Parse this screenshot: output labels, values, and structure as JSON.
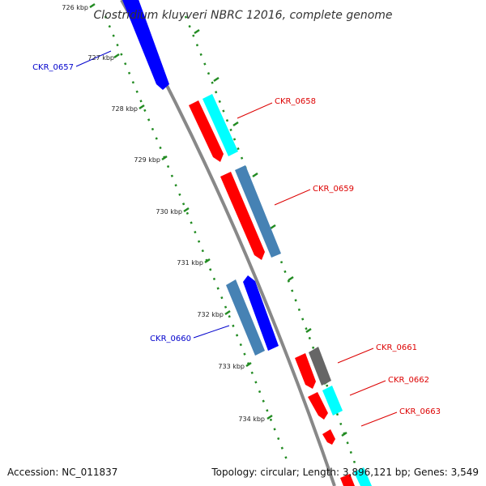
{
  "title": "Clostridium kluyveri NBRC 12016, complete genome",
  "accession": "Accession: NC_011837",
  "topology": "Topology: circular; Length: 3,896,121 bp; Genes: 3,549",
  "colors": {
    "forward_label": "#dd0000",
    "reverse_label": "#0000cc",
    "red": "#ff0000",
    "cyan": "#00ffff",
    "blue": "#0000ff",
    "steel": "#4682b4",
    "gray": "#666666",
    "backbone": "#888888",
    "ticks": "#228b22"
  },
  "ticks": [
    {
      "label": "726 kbp"
    },
    {
      "label": "727 kbp"
    },
    {
      "label": "728 kbp"
    },
    {
      "label": "729 kbp"
    },
    {
      "label": "730 kbp"
    },
    {
      "label": "731 kbp"
    },
    {
      "label": "732 kbp"
    },
    {
      "label": "733 kbp"
    },
    {
      "label": "734 kbp"
    }
  ],
  "gene_labels": [
    {
      "name": "CKR_0657",
      "strand": "reverse"
    },
    {
      "name": "CKR_0658",
      "strand": "forward"
    },
    {
      "name": "CKR_0659",
      "strand": "forward"
    },
    {
      "name": "CKR_0660",
      "strand": "reverse"
    },
    {
      "name": "CKR_0661",
      "strand": "forward"
    },
    {
      "name": "CKR_0662",
      "strand": "forward"
    },
    {
      "name": "CKR_0663",
      "strand": "forward"
    }
  ]
}
